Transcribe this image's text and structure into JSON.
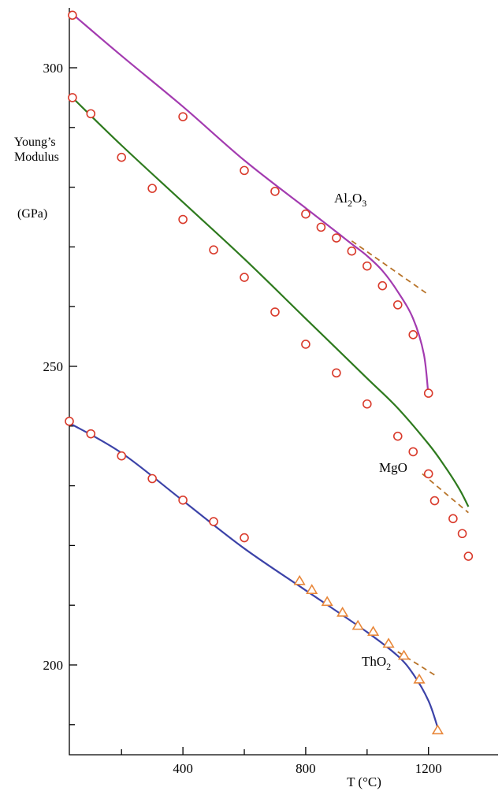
{
  "chart_data": {
    "type": "line",
    "title": "",
    "ylabel_lines": [
      "Young’s",
      "Modulus"
    ],
    "ylabel_unit": "(GPa)",
    "xlabel": "T (°C)",
    "xlim": [
      30,
      1330
    ],
    "ylim": [
      190,
      310
    ],
    "x_ticks": [
      400,
      800,
      1200
    ],
    "x_minor_ticks": [
      200,
      600,
      1000
    ],
    "y_ticks": [
      200,
      250,
      300
    ],
    "y_minor_ticks": [
      190,
      210,
      220,
      230,
      240,
      260,
      270,
      280,
      290
    ],
    "series": [
      {
        "name": "Al2O3",
        "label_base": "Al",
        "label_sub1": "2",
        "label_mid": "O",
        "label_sub2": "3",
        "color": "#a33bb0",
        "marker": "circle",
        "line": [
          [
            40,
            309
          ],
          [
            200,
            302
          ],
          [
            400,
            293.5
          ],
          [
            600,
            284.5
          ],
          [
            800,
            276.5
          ],
          [
            900,
            272.5
          ],
          [
            950,
            270.5
          ],
          [
            1000,
            268.5
          ],
          [
            1050,
            266
          ],
          [
            1100,
            262.5
          ],
          [
            1150,
            258
          ],
          [
            1185,
            252
          ],
          [
            1200,
            245
          ]
        ],
        "points": [
          [
            40,
            308.8
          ],
          [
            400,
            291.8
          ],
          [
            600,
            282.8
          ],
          [
            700,
            279.3
          ],
          [
            800,
            275.5
          ],
          [
            850,
            273.3
          ],
          [
            900,
            271.5
          ],
          [
            950,
            269.3
          ],
          [
            1000,
            266.8
          ],
          [
            1050,
            263.5
          ],
          [
            1100,
            260.3
          ],
          [
            1150,
            255.3
          ],
          [
            1200,
            245.5
          ]
        ],
        "extrapolation": [
          [
            950,
            271
          ],
          [
            1200,
            262
          ]
        ]
      },
      {
        "name": "MgO",
        "color": "#2e7a1e",
        "marker": "circle",
        "line": [
          [
            40,
            295
          ],
          [
            200,
            287
          ],
          [
            400,
            277.5
          ],
          [
            600,
            268
          ],
          [
            800,
            258
          ],
          [
            1000,
            248
          ],
          [
            1100,
            243
          ],
          [
            1200,
            237
          ],
          [
            1250,
            233.5
          ],
          [
            1300,
            229.5
          ],
          [
            1330,
            226.5
          ]
        ],
        "points": [
          [
            40,
            295
          ],
          [
            100,
            292.3
          ],
          [
            200,
            285
          ],
          [
            300,
            279.8
          ],
          [
            400,
            274.6
          ],
          [
            500,
            269.5
          ],
          [
            600,
            264.9
          ],
          [
            700,
            259.1
          ],
          [
            800,
            253.7
          ],
          [
            900,
            248.9
          ],
          [
            1000,
            243.7
          ],
          [
            1100,
            238.3
          ],
          [
            1150,
            235.7
          ],
          [
            1200,
            232
          ],
          [
            1220,
            227.5
          ],
          [
            1280,
            224.5
          ],
          [
            1310,
            222
          ],
          [
            1330,
            218.2
          ]
        ],
        "extrapolation": [
          [
            1180,
            232
          ],
          [
            1330,
            225.5
          ]
        ]
      },
      {
        "name": "ThO2",
        "label_base": "ThO",
        "label_sub1": "2",
        "color": "#3c43a8",
        "marker": "circle_then_triangle",
        "line": [
          [
            30,
            240.5
          ],
          [
            200,
            235.5
          ],
          [
            400,
            227.5
          ],
          [
            600,
            219.5
          ],
          [
            800,
            212.5
          ],
          [
            1000,
            205.5
          ],
          [
            1100,
            201.5
          ],
          [
            1150,
            198.5
          ],
          [
            1200,
            194
          ],
          [
            1230,
            189.5
          ]
        ],
        "points_circle": [
          [
            30,
            240.8
          ],
          [
            100,
            238.7
          ],
          [
            200,
            235
          ],
          [
            300,
            231.2
          ],
          [
            400,
            227.6
          ],
          [
            500,
            224
          ],
          [
            600,
            221.3
          ]
        ],
        "points_triangle": [
          [
            780,
            214
          ],
          [
            820,
            212.5
          ],
          [
            870,
            210.5
          ],
          [
            920,
            208.7
          ],
          [
            970,
            206.5
          ],
          [
            1020,
            205.5
          ],
          [
            1070,
            203.5
          ],
          [
            1120,
            201.5
          ],
          [
            1170,
            197.5
          ],
          [
            1230,
            189
          ]
        ],
        "extrapolation": [
          [
            1100,
            202.2
          ],
          [
            1230,
            198
          ]
        ]
      }
    ]
  }
}
